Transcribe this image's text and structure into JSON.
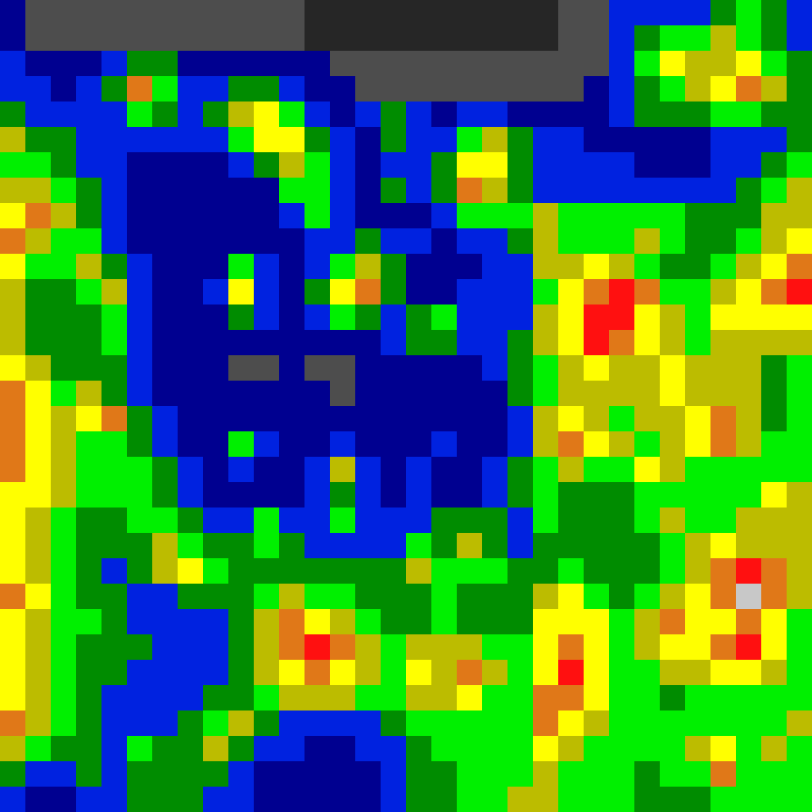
{
  "chart_data": {
    "type": "heatmap",
    "tick_labels": false,
    "colors": [
      "#262626",
      "#4d4d4d",
      "#000090",
      "#0022e0",
      "#008c00",
      "#00f000",
      "#bcbc00",
      "#ffff00",
      "#e07818",
      "#ff1010",
      "#c8c8c8"
    ],
    "cells": [
      [
        2,
        1,
        1,
        1,
        1,
        1,
        1,
        1,
        1,
        1,
        1,
        1,
        0,
        0,
        0,
        0,
        0,
        0,
        0,
        0,
        0,
        0,
        1,
        1,
        3,
        3,
        3,
        3,
        4,
        5,
        4,
        3
      ],
      [
        2,
        1,
        1,
        1,
        1,
        1,
        1,
        1,
        1,
        1,
        1,
        1,
        0,
        0,
        0,
        0,
        0,
        0,
        0,
        0,
        0,
        0,
        1,
        1,
        3,
        4,
        5,
        5,
        6,
        5,
        4,
        3
      ],
      [
        3,
        2,
        2,
        2,
        3,
        4,
        4,
        2,
        2,
        2,
        2,
        2,
        2,
        1,
        1,
        1,
        1,
        1,
        1,
        1,
        1,
        1,
        1,
        1,
        3,
        5,
        7,
        6,
        6,
        7,
        5,
        4
      ],
      [
        3,
        3,
        2,
        3,
        4,
        8,
        5,
        3,
        3,
        4,
        4,
        3,
        2,
        2,
        1,
        1,
        1,
        1,
        1,
        1,
        1,
        1,
        1,
        2,
        3,
        4,
        5,
        6,
        7,
        8,
        6,
        4
      ],
      [
        4,
        3,
        3,
        3,
        3,
        5,
        4,
        3,
        4,
        6,
        7,
        5,
        3,
        2,
        3,
        4,
        3,
        2,
        3,
        3,
        2,
        2,
        2,
        2,
        3,
        4,
        4,
        4,
        5,
        5,
        4,
        4
      ],
      [
        6,
        4,
        4,
        3,
        3,
        3,
        3,
        3,
        3,
        5,
        7,
        7,
        4,
        3,
        2,
        4,
        3,
        3,
        5,
        6,
        4,
        3,
        3,
        2,
        2,
        2,
        2,
        2,
        3,
        3,
        3,
        4
      ],
      [
        5,
        5,
        4,
        3,
        3,
        2,
        2,
        2,
        2,
        3,
        4,
        6,
        5,
        3,
        2,
        3,
        3,
        4,
        7,
        7,
        4,
        3,
        3,
        3,
        3,
        2,
        2,
        2,
        3,
        3,
        4,
        5
      ],
      [
        6,
        6,
        5,
        4,
        3,
        2,
        2,
        2,
        2,
        2,
        2,
        5,
        5,
        3,
        2,
        4,
        3,
        4,
        8,
        6,
        4,
        3,
        3,
        3,
        3,
        3,
        3,
        3,
        3,
        4,
        5,
        6
      ],
      [
        7,
        8,
        6,
        4,
        3,
        2,
        2,
        2,
        2,
        2,
        2,
        3,
        5,
        3,
        2,
        2,
        2,
        3,
        5,
        5,
        5,
        6,
        5,
        5,
        5,
        5,
        5,
        4,
        4,
        4,
        6,
        6
      ],
      [
        8,
        6,
        5,
        5,
        3,
        2,
        2,
        2,
        2,
        2,
        2,
        2,
        3,
        3,
        4,
        3,
        3,
        2,
        3,
        3,
        4,
        6,
        5,
        5,
        5,
        6,
        5,
        4,
        4,
        5,
        6,
        7
      ],
      [
        7,
        5,
        5,
        6,
        4,
        3,
        2,
        2,
        2,
        5,
        3,
        2,
        3,
        5,
        6,
        4,
        2,
        2,
        2,
        3,
        3,
        6,
        6,
        7,
        6,
        5,
        4,
        4,
        5,
        6,
        7,
        8
      ],
      [
        6,
        4,
        4,
        5,
        6,
        3,
        2,
        2,
        3,
        7,
        3,
        2,
        4,
        7,
        8,
        4,
        2,
        2,
        3,
        3,
        3,
        5,
        7,
        8,
        9,
        8,
        5,
        5,
        6,
        7,
        8,
        9
      ],
      [
        6,
        4,
        4,
        4,
        5,
        3,
        2,
        2,
        2,
        4,
        3,
        2,
        3,
        5,
        4,
        3,
        4,
        5,
        3,
        3,
        3,
        6,
        7,
        9,
        9,
        7,
        6,
        5,
        7,
        7,
        7,
        7
      ],
      [
        6,
        4,
        4,
        4,
        5,
        3,
        2,
        2,
        2,
        2,
        2,
        2,
        2,
        2,
        2,
        3,
        4,
        4,
        3,
        3,
        4,
        6,
        7,
        9,
        8,
        7,
        6,
        5,
        6,
        6,
        6,
        6
      ],
      [
        7,
        6,
        4,
        4,
        4,
        3,
        2,
        2,
        2,
        1,
        1,
        2,
        1,
        1,
        2,
        2,
        2,
        2,
        2,
        3,
        4,
        5,
        6,
        7,
        6,
        6,
        7,
        6,
        6,
        6,
        4,
        5
      ],
      [
        8,
        7,
        5,
        6,
        4,
        3,
        2,
        2,
        2,
        2,
        2,
        2,
        2,
        1,
        2,
        2,
        2,
        2,
        2,
        2,
        4,
        5,
        6,
        6,
        6,
        6,
        7,
        6,
        6,
        6,
        4,
        5
      ],
      [
        8,
        7,
        6,
        7,
        8,
        4,
        3,
        2,
        2,
        2,
        2,
        2,
        2,
        2,
        2,
        2,
        2,
        2,
        2,
        2,
        3,
        6,
        7,
        6,
        5,
        6,
        6,
        7,
        8,
        6,
        4,
        5
      ],
      [
        8,
        7,
        6,
        5,
        5,
        4,
        3,
        2,
        2,
        5,
        3,
        2,
        2,
        3,
        2,
        2,
        2,
        3,
        2,
        2,
        3,
        6,
        8,
        7,
        6,
        5,
        6,
        7,
        8,
        6,
        5,
        5
      ],
      [
        8,
        7,
        6,
        5,
        5,
        5,
        4,
        3,
        2,
        3,
        2,
        2,
        3,
        6,
        3,
        2,
        3,
        2,
        2,
        3,
        4,
        5,
        6,
        5,
        5,
        7,
        6,
        5,
        5,
        5,
        5,
        5
      ],
      [
        7,
        7,
        6,
        5,
        5,
        5,
        4,
        3,
        2,
        2,
        2,
        2,
        3,
        4,
        3,
        2,
        3,
        2,
        2,
        3,
        4,
        5,
        4,
        4,
        4,
        5,
        5,
        5,
        5,
        5,
        7,
        6
      ],
      [
        7,
        6,
        5,
        4,
        4,
        5,
        5,
        4,
        3,
        3,
        5,
        3,
        3,
        5,
        3,
        3,
        3,
        4,
        4,
        4,
        3,
        5,
        4,
        4,
        4,
        5,
        6,
        5,
        5,
        6,
        6,
        6
      ],
      [
        7,
        6,
        5,
        4,
        4,
        4,
        6,
        5,
        4,
        4,
        5,
        4,
        3,
        3,
        3,
        3,
        5,
        4,
        6,
        4,
        3,
        4,
        4,
        4,
        4,
        4,
        5,
        6,
        7,
        6,
        6,
        6
      ],
      [
        7,
        6,
        5,
        4,
        3,
        4,
        6,
        7,
        5,
        4,
        4,
        4,
        4,
        4,
        4,
        4,
        6,
        5,
        5,
        5,
        4,
        4,
        5,
        4,
        4,
        4,
        5,
        6,
        8,
        9,
        8,
        6
      ],
      [
        8,
        7,
        5,
        4,
        4,
        3,
        3,
        4,
        4,
        4,
        5,
        6,
        5,
        5,
        4,
        4,
        4,
        5,
        4,
        4,
        4,
        6,
        7,
        5,
        4,
        5,
        6,
        7,
        8,
        10,
        8,
        6
      ],
      [
        7,
        6,
        5,
        5,
        4,
        3,
        3,
        3,
        3,
        4,
        6,
        8,
        7,
        6,
        5,
        4,
        4,
        5,
        4,
        4,
        4,
        7,
        7,
        7,
        5,
        6,
        8,
        7,
        7,
        8,
        7,
        5
      ],
      [
        7,
        6,
        5,
        4,
        4,
        4,
        3,
        3,
        3,
        4,
        6,
        8,
        9,
        8,
        6,
        5,
        6,
        6,
        6,
        5,
        5,
        7,
        8,
        7,
        5,
        6,
        7,
        7,
        8,
        9,
        7,
        5
      ],
      [
        7,
        6,
        5,
        4,
        4,
        3,
        3,
        3,
        3,
        4,
        6,
        7,
        8,
        7,
        6,
        5,
        7,
        6,
        8,
        6,
        5,
        7,
        9,
        7,
        5,
        5,
        6,
        6,
        7,
        7,
        6,
        5
      ],
      [
        7,
        6,
        5,
        4,
        3,
        3,
        3,
        3,
        4,
        4,
        5,
        6,
        6,
        6,
        5,
        5,
        6,
        6,
        7,
        5,
        5,
        8,
        8,
        7,
        5,
        5,
        4,
        5,
        5,
        5,
        5,
        5
      ],
      [
        8,
        6,
        5,
        4,
        3,
        3,
        3,
        4,
        5,
        6,
        4,
        3,
        3,
        3,
        3,
        4,
        5,
        5,
        5,
        5,
        5,
        8,
        7,
        6,
        5,
        5,
        5,
        5,
        5,
        5,
        5,
        6
      ],
      [
        6,
        5,
        4,
        4,
        3,
        5,
        4,
        4,
        6,
        4,
        3,
        3,
        2,
        2,
        3,
        3,
        4,
        5,
        5,
        5,
        5,
        7,
        6,
        5,
        5,
        5,
        5,
        6,
        7,
        5,
        6,
        5
      ],
      [
        4,
        3,
        3,
        4,
        3,
        4,
        4,
        4,
        4,
        3,
        2,
        2,
        2,
        2,
        2,
        3,
        4,
        4,
        5,
        5,
        5,
        6,
        5,
        5,
        5,
        4,
        5,
        5,
        8,
        5,
        5,
        5
      ],
      [
        3,
        2,
        2,
        3,
        3,
        4,
        4,
        4,
        3,
        3,
        2,
        2,
        2,
        2,
        2,
        3,
        4,
        4,
        5,
        5,
        6,
        6,
        5,
        5,
        5,
        4,
        4,
        4,
        5,
        5,
        5,
        5
      ]
    ]
  }
}
